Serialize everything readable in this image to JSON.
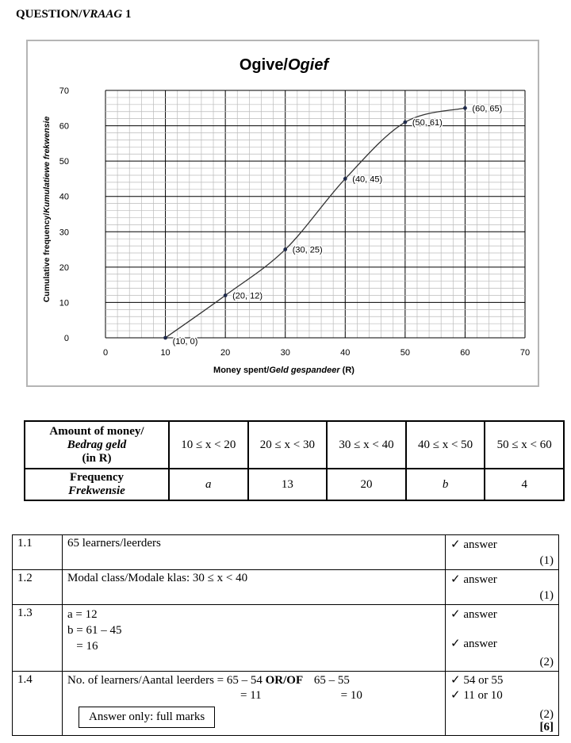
{
  "question_title": "QUESTION/",
  "question_title_italic": "VRAAG",
  "question_number": " 1",
  "chart_data": {
    "type": "line",
    "title": "Ogive/",
    "title_italic": "Ogief",
    "xlabel": "Money spent/",
    "xlabel_italic": "Geld gespandeer",
    "xlabel_unit": " (R)",
    "ylabel": "Cumulative frequency/",
    "ylabel_italic": "Kumulatiewe frekwensie",
    "xlim": [
      0,
      70
    ],
    "ylim": [
      0,
      70
    ],
    "x_ticks": [
      "0",
      "10",
      "20",
      "30",
      "40",
      "50",
      "60",
      "70"
    ],
    "y_ticks": [
      "0",
      "10",
      "20",
      "30",
      "40",
      "50",
      "60",
      "70"
    ],
    "grid": true,
    "points": [
      {
        "x": 10,
        "y": 0,
        "label": "(10, 0)"
      },
      {
        "x": 20,
        "y": 12,
        "label": "(20, 12)"
      },
      {
        "x": 30,
        "y": 25,
        "label": "(30, 25)"
      },
      {
        "x": 40,
        "y": 45,
        "label": "(40, 45)"
      },
      {
        "x": 50,
        "y": 61,
        "label": "(50, 61)"
      },
      {
        "x": 60,
        "y": 65,
        "label": "(60, 65)"
      }
    ]
  },
  "freq_table": {
    "header1": "Amount of money/",
    "header2": "Bedrag geld",
    "header3": "(in R)",
    "classes": [
      "10 ≤ x < 20",
      "20 ≤ x < 30",
      "30 ≤ x < 40",
      "40 ≤ x < 50",
      "50 ≤ x < 60"
    ],
    "row2_label1": "Frequency",
    "row2_label2": "Frekwensie",
    "frequencies": [
      "a",
      "13",
      "20",
      "b",
      "4"
    ]
  },
  "answers": [
    {
      "num": "1.1",
      "lines": [
        "65 learners/leerders"
      ],
      "marks": [
        "✓ answer"
      ],
      "total": "(1)"
    },
    {
      "num": "1.2",
      "lines": [
        "Modal class/Modale klas: 30 ≤ x < 40"
      ],
      "marks": [
        "✓ answer"
      ],
      "total": "(1)"
    },
    {
      "num": "1.3",
      "lines": [
        "a = 12",
        "b = 61 – 45",
        "   = 16"
      ],
      "marks": [
        "✓ answer",
        "✓ answer"
      ],
      "total": "(2)"
    },
    {
      "num": "1.4",
      "line1": "No. of learners/Aantal leerders = 65 – 54",
      "or": "OR/OF",
      "alt1": "65 – 55",
      "line2": "= 11",
      "alt2": "= 10",
      "box": "Answer only: full marks",
      "marks": [
        "✓ 54 or 55",
        "✓ 11 or 10"
      ],
      "total": "(2)",
      "grand_total": "[6]"
    }
  ]
}
